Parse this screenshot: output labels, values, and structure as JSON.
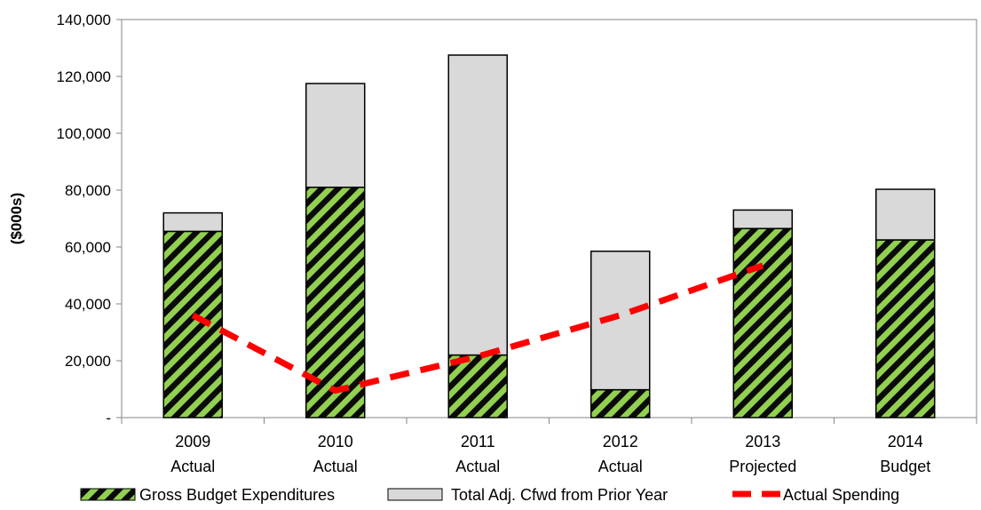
{
  "chart_data": {
    "type": "bar",
    "stacked": true,
    "categories": [
      [
        "2009",
        "Actual"
      ],
      [
        "2010",
        "Actual"
      ],
      [
        "2011",
        "Actual"
      ],
      [
        "2012",
        "Actual"
      ],
      [
        "2013",
        "Projected"
      ],
      [
        "2014",
        "Budget"
      ]
    ],
    "series": [
      {
        "name": "Gross Budget Expenditures",
        "kind": "bar",
        "values": [
          65500,
          81000,
          22000,
          9800,
          66500,
          62500
        ],
        "color": "#92d050",
        "pattern": "hatched"
      },
      {
        "name": "Total Adj. Cfwd from Prior Year",
        "kind": "bar",
        "values": [
          6500,
          36500,
          105500,
          48700,
          6500,
          17800
        ],
        "color": "#d9d9d9"
      },
      {
        "name": "Actual Spending",
        "kind": "line",
        "style": "dashed",
        "color": "#ff0000",
        "values": [
          36000,
          9500,
          21500,
          36000,
          53500,
          null
        ]
      }
    ],
    "ylabel": "($000s)",
    "ylim": [
      0,
      140000
    ],
    "yticks": [
      0,
      20000,
      40000,
      60000,
      80000,
      100000,
      120000,
      140000
    ],
    "ytick_labels": [
      "-",
      "20,000",
      "40,000",
      "60,000",
      "80,000",
      "100,000",
      "120,000",
      "140,000"
    ],
    "grid": false,
    "legend_position": "bottom"
  }
}
